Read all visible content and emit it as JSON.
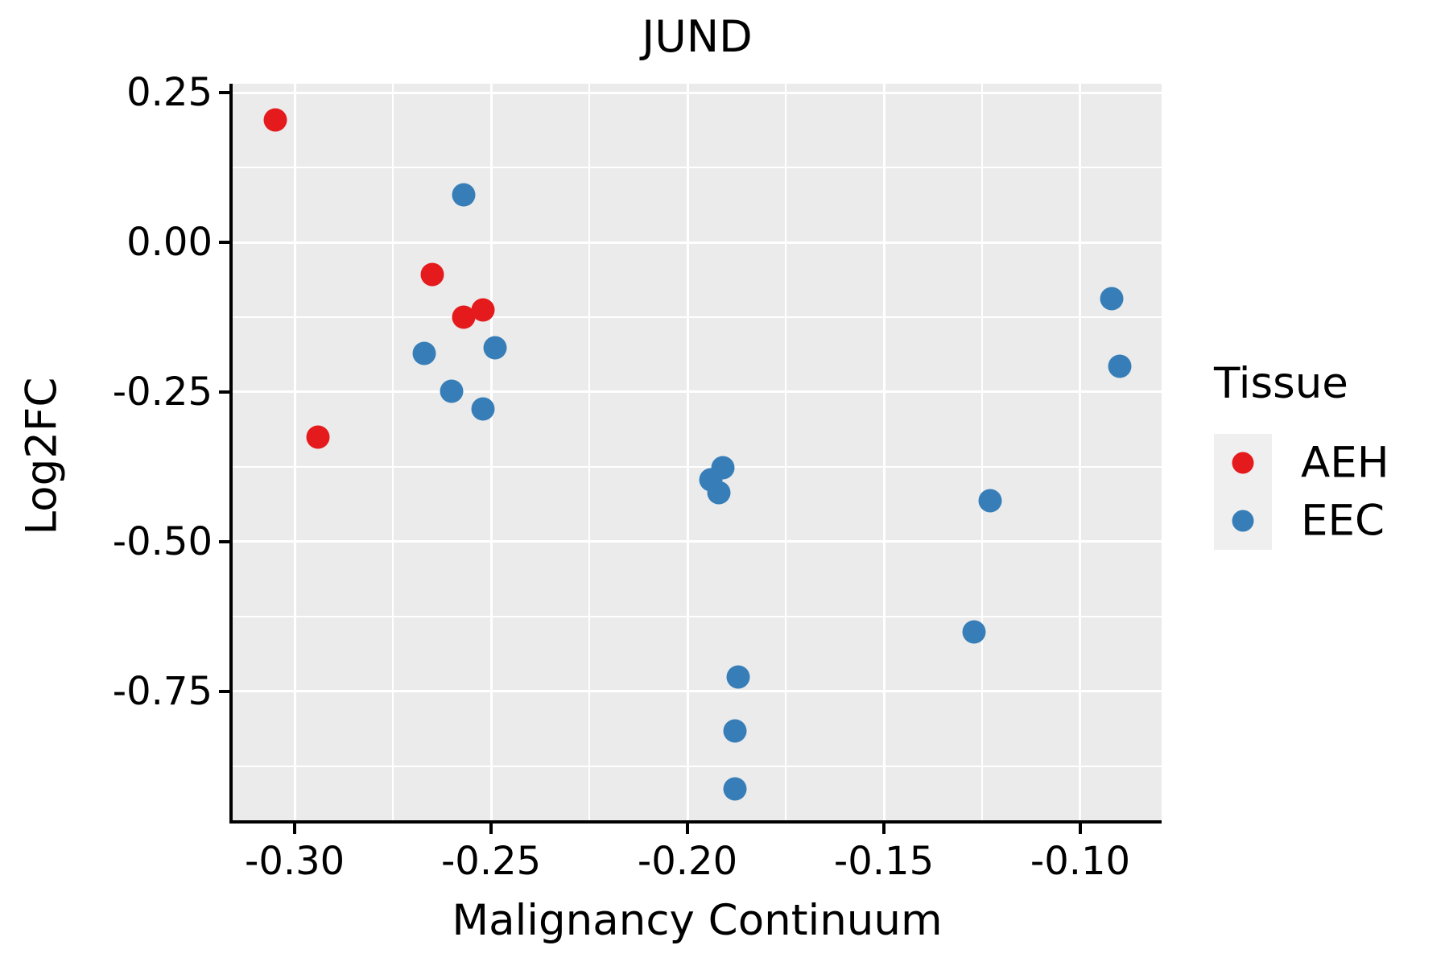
{
  "figure": {
    "title": "JUND",
    "x_axis_label": "Malignancy Continuum",
    "y_axis_label": "Log2FC",
    "legend": {
      "title": "Tissue",
      "items": [
        {
          "label": "AEH",
          "color": "#e41a1c"
        },
        {
          "label": "EEC",
          "color": "#377eb8"
        }
      ]
    }
  },
  "chart_data": {
    "type": "scatter",
    "title": "JUND",
    "xlabel": "Malignancy Continuum",
    "ylabel": "Log2FC",
    "legend_title": "Tissue",
    "legend_position": "right-center",
    "grid": "major and minor white gridlines on grey panel",
    "panel_background": "#ebebeb",
    "gridline_color": "#ffffff",
    "axis_color": "#000000",
    "xlim": [
      -0.3158,
      -0.0793
    ],
    "ylim": [
      -0.9651,
      0.2648
    ],
    "x_ticks": {
      "values": [
        -0.3,
        -0.25,
        -0.2,
        -0.15,
        -0.1
      ],
      "labels": [
        "-0.30",
        "-0.25",
        "-0.20",
        "-0.15",
        "-0.10"
      ]
    },
    "y_ticks": {
      "values": [
        0.25,
        0.0,
        -0.25,
        -0.5,
        -0.75
      ],
      "labels": [
        "0.25",
        "0.00",
        "-0.25",
        "-0.50",
        "-0.75"
      ]
    },
    "series": [
      {
        "name": "AEH",
        "color": "#e41a1c",
        "points": [
          [
            -0.305,
            0.204
          ],
          [
            -0.294,
            -0.325
          ],
          [
            -0.265,
            -0.054
          ],
          [
            -0.257,
            -0.125
          ],
          [
            -0.252,
            -0.113
          ]
        ]
      },
      {
        "name": "EEC",
        "color": "#377eb8",
        "points": [
          [
            -0.257,
            0.079
          ],
          [
            -0.267,
            -0.186
          ],
          [
            -0.249,
            -0.176
          ],
          [
            -0.26,
            -0.249
          ],
          [
            -0.252,
            -0.278
          ],
          [
            -0.191,
            -0.376
          ],
          [
            -0.194,
            -0.397
          ],
          [
            -0.192,
            -0.418
          ],
          [
            -0.187,
            -0.726
          ],
          [
            -0.188,
            -0.816
          ],
          [
            -0.188,
            -0.913
          ],
          [
            -0.123,
            -0.432
          ],
          [
            -0.127,
            -0.65
          ],
          [
            -0.092,
            -0.094
          ],
          [
            -0.09,
            -0.207
          ]
        ]
      }
    ]
  }
}
